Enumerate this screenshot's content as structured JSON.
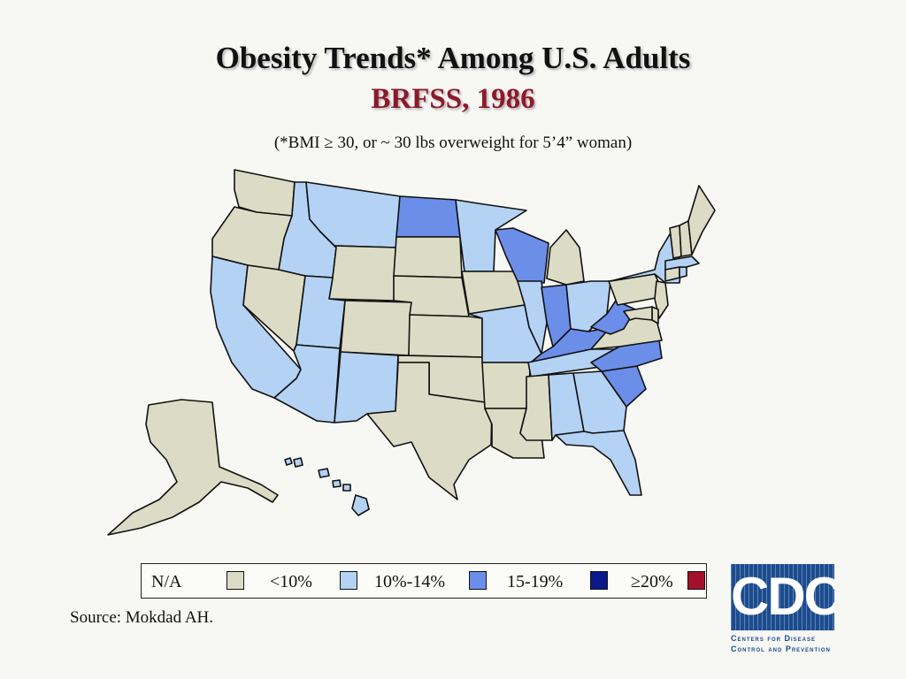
{
  "title": "Obesity Trends* Among U.S. Adults",
  "subtitle": "BRFSS, 1986",
  "note": "(*BMI ≥ 30, or ~ 30 lbs overweight for 5’4” woman)",
  "source": "Source: Mokdad AH.",
  "legend": [
    {
      "label": "N/A",
      "color": "#dcdcc6"
    },
    {
      "label": "<10%",
      "color": "#b4d2f4"
    },
    {
      "label": "10%-14%",
      "color": "#6b8ee8"
    },
    {
      "label": "15-19%",
      "color": "#0a1a8c"
    },
    {
      "label": "≥20%",
      "color": "#a3102a"
    }
  ],
  "logo": {
    "letters": "CDC",
    "line1": "Centers for Disease",
    "line2": "Control and Prevention"
  },
  "colors": {
    "na": "#dcdcc6",
    "lt10": "#b4d2f4",
    "r10_14": "#6b8ee8",
    "r15_19": "#0a1a8c",
    "ge20": "#a3102a"
  },
  "map_data": {
    "states": [
      {
        "state": "Washington",
        "category": "N/A"
      },
      {
        "state": "Oregon",
        "category": "N/A"
      },
      {
        "state": "California",
        "category": "<10%"
      },
      {
        "state": "Nevada",
        "category": "N/A"
      },
      {
        "state": "Idaho",
        "category": "<10%"
      },
      {
        "state": "Montana",
        "category": "<10%"
      },
      {
        "state": "Wyoming",
        "category": "N/A"
      },
      {
        "state": "Utah",
        "category": "<10%"
      },
      {
        "state": "Arizona",
        "category": "<10%"
      },
      {
        "state": "Colorado",
        "category": "N/A"
      },
      {
        "state": "New Mexico",
        "category": "<10%"
      },
      {
        "state": "North Dakota",
        "category": "10%-14%"
      },
      {
        "state": "South Dakota",
        "category": "N/A"
      },
      {
        "state": "Nebraska",
        "category": "N/A"
      },
      {
        "state": "Kansas",
        "category": "N/A"
      },
      {
        "state": "Oklahoma",
        "category": "N/A"
      },
      {
        "state": "Texas",
        "category": "N/A"
      },
      {
        "state": "Minnesota",
        "category": "<10%"
      },
      {
        "state": "Iowa",
        "category": "N/A"
      },
      {
        "state": "Missouri",
        "category": "<10%"
      },
      {
        "state": "Arkansas",
        "category": "N/A"
      },
      {
        "state": "Louisiana",
        "category": "N/A"
      },
      {
        "state": "Wisconsin",
        "category": "10%-14%"
      },
      {
        "state": "Illinois",
        "category": "<10%"
      },
      {
        "state": "Michigan",
        "category": "N/A"
      },
      {
        "state": "Indiana",
        "category": "10%-14%"
      },
      {
        "state": "Ohio",
        "category": "<10%"
      },
      {
        "state": "Kentucky",
        "category": "10%-14%"
      },
      {
        "state": "Tennessee",
        "category": "<10%"
      },
      {
        "state": "Mississippi",
        "category": "N/A"
      },
      {
        "state": "Alabama",
        "category": "<10%"
      },
      {
        "state": "Georgia",
        "category": "<10%"
      },
      {
        "state": "Florida",
        "category": "<10%"
      },
      {
        "state": "South Carolina",
        "category": "10%-14%"
      },
      {
        "state": "North Carolina",
        "category": "10%-14%"
      },
      {
        "state": "Virginia",
        "category": "N/A"
      },
      {
        "state": "West Virginia",
        "category": "10%-14%"
      },
      {
        "state": "Pennsylvania",
        "category": "N/A"
      },
      {
        "state": "New York",
        "category": "<10%"
      },
      {
        "state": "New Jersey",
        "category": "N/A"
      },
      {
        "state": "Delaware",
        "category": "N/A"
      },
      {
        "state": "Maryland",
        "category": "N/A"
      },
      {
        "state": "Connecticut",
        "category": "N/A"
      },
      {
        "state": "Rhode Island",
        "category": "<10%"
      },
      {
        "state": "Massachusetts",
        "category": "<10%"
      },
      {
        "state": "Vermont",
        "category": "N/A"
      },
      {
        "state": "New Hampshire",
        "category": "N/A"
      },
      {
        "state": "Maine",
        "category": "N/A"
      },
      {
        "state": "Alaska",
        "category": "N/A"
      },
      {
        "state": "Hawaii",
        "category": "<10%"
      }
    ]
  }
}
